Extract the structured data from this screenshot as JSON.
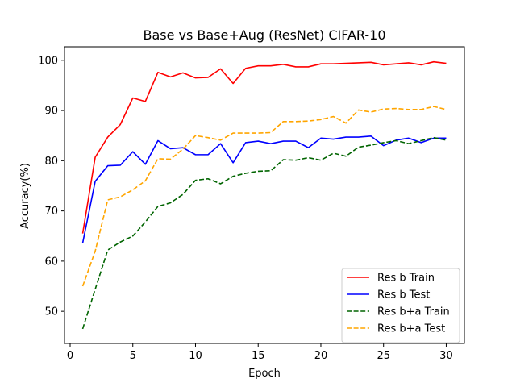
{
  "chart_data": {
    "type": "line",
    "title": "Base vs Base+Aug (ResNet) CIFAR-10",
    "xlabel": "Epoch",
    "ylabel": "Accuracy(%)",
    "xlim": [
      -0.45,
      31.45
    ],
    "ylim": [
      43.6,
      102.7
    ],
    "xticks": [
      0,
      5,
      10,
      15,
      20,
      25,
      30
    ],
    "yticks": [
      50,
      60,
      70,
      80,
      90,
      100
    ],
    "grid": false,
    "legend_position": "lower-right",
    "x": [
      1,
      2,
      3,
      4,
      5,
      6,
      7,
      8,
      9,
      10,
      11,
      12,
      13,
      14,
      15,
      16,
      17,
      18,
      19,
      20,
      21,
      22,
      23,
      24,
      25,
      26,
      27,
      28,
      29,
      30
    ],
    "series": [
      {
        "name": "Res b Train",
        "color": "#ff0000",
        "linestyle": "solid",
        "values": [
          65.5,
          80.7,
          84.7,
          87.2,
          92.5,
          91.8,
          97.6,
          96.7,
          97.5,
          96.5,
          96.6,
          98.3,
          95.4,
          98.4,
          98.9,
          98.9,
          99.2,
          98.7,
          98.7,
          99.3,
          99.3,
          99.4,
          99.5,
          99.6,
          99.1,
          99.3,
          99.5,
          99.1,
          99.7,
          99.4
        ]
      },
      {
        "name": "Res b Test",
        "color": "#0000ff",
        "linestyle": "solid",
        "values": [
          63.6,
          75.9,
          79.0,
          79.1,
          81.8,
          79.3,
          84.0,
          82.4,
          82.6,
          81.2,
          81.2,
          83.4,
          79.6,
          83.6,
          83.9,
          83.4,
          83.9,
          83.9,
          82.6,
          84.5,
          84.3,
          84.7,
          84.7,
          84.9,
          83.0,
          84.1,
          84.5,
          83.6,
          84.5,
          84.5
        ]
      },
      {
        "name": "Res b+a Train",
        "color": "#006400",
        "linestyle": "dashed",
        "values": [
          46.5,
          54.4,
          62.2,
          63.8,
          65.0,
          67.8,
          70.9,
          71.6,
          73.3,
          76.1,
          76.4,
          75.4,
          76.9,
          77.5,
          77.9,
          78.0,
          80.2,
          80.1,
          80.6,
          80.1,
          81.5,
          80.9,
          82.7,
          83.1,
          83.6,
          84.0,
          83.4,
          84.0,
          84.6,
          84.1
        ]
      },
      {
        "name": "Res b+a Test",
        "color": "#ffa500",
        "linestyle": "dashed",
        "values": [
          55.0,
          62.0,
          72.2,
          72.8,
          74.2,
          76.0,
          80.4,
          80.3,
          82.3,
          85.0,
          84.6,
          84.1,
          85.5,
          85.5,
          85.5,
          85.6,
          87.8,
          87.8,
          87.9,
          88.2,
          88.8,
          87.5,
          90.1,
          89.7,
          90.3,
          90.4,
          90.2,
          90.2,
          90.8,
          90.2
        ]
      }
    ]
  }
}
